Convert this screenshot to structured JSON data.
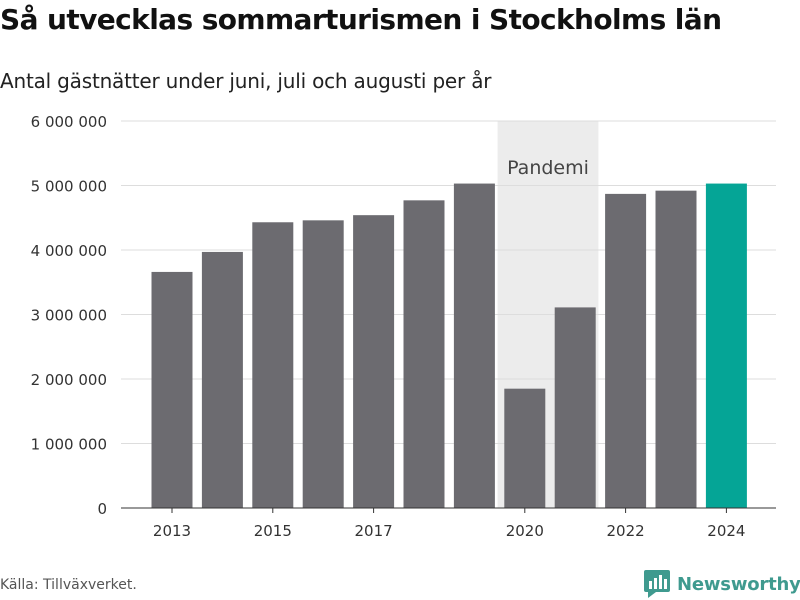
{
  "title": "Så utvecklas sommarturismen i Stockholms län",
  "subtitle": "Antal gästnätter under juni, juli och augusti per år",
  "source": "Källa: Tillväxverket.",
  "brand": "Newsworthy",
  "colors": {
    "bar": "#6c6b70",
    "highlight": "#05a596",
    "pandemic_band": "#ececec",
    "grid": "#dddddd",
    "brand": "#3f9a8f"
  },
  "chart_data": {
    "type": "bar",
    "title": "Så utvecklas sommarturismen i Stockholms län",
    "subtitle": "Antal gästnätter under juni, juli och augusti per år",
    "categories": [
      "2013",
      "2014",
      "2015",
      "2016",
      "2017",
      "2018",
      "2019",
      "2020",
      "2021",
      "2022",
      "2023",
      "2024"
    ],
    "values": [
      3660000,
      3970000,
      4430000,
      4460000,
      4540000,
      4770000,
      5030000,
      1850000,
      3110000,
      4870000,
      4920000,
      5030000
    ],
    "highlight_category": "2024",
    "x_tick_labels": [
      "2013",
      "2015",
      "2017",
      "2020",
      "2022",
      "2024"
    ],
    "y_ticks": [
      0,
      1000000,
      2000000,
      3000000,
      4000000,
      5000000,
      6000000
    ],
    "y_tick_labels": [
      "0",
      "1 000 000",
      "2 000 000",
      "3 000 000",
      "4 000 000",
      "5 000 000",
      "6 000 000"
    ],
    "ylim": [
      0,
      6000000
    ],
    "xlabel": "",
    "ylabel": "",
    "grid": true,
    "legend": "none",
    "annotation": {
      "label": "Pandemi",
      "from_category": "2020",
      "to_category": "2021"
    }
  }
}
